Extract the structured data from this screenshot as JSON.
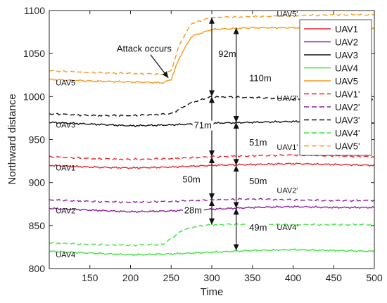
{
  "chart_data": {
    "type": "line",
    "xlabel": "Time",
    "ylabel": "Northward distance",
    "xlim": [
      100,
      500
    ],
    "ylim": [
      800,
      1100
    ],
    "xticks": [
      150,
      200,
      250,
      300,
      350,
      400,
      450,
      500
    ],
    "yticks": [
      800,
      850,
      900,
      950,
      1000,
      1050,
      1100
    ],
    "grid": false,
    "legend_position": "top-right",
    "series": [
      {
        "name": "UAV1",
        "color": "#e8242a",
        "style": "solid",
        "x": [
          100,
          150,
          200,
          250,
          300,
          350,
          400,
          450,
          500
        ],
        "y": [
          920,
          918,
          917,
          918,
          920,
          921,
          922,
          921,
          920
        ]
      },
      {
        "name": "UAV2",
        "color": "#8e1d9a",
        "style": "solid",
        "x": [
          100,
          150,
          200,
          250,
          300,
          350,
          400,
          450,
          500
        ],
        "y": [
          870,
          868,
          866,
          867,
          869,
          871,
          872,
          871,
          871
        ]
      },
      {
        "name": "UAV3",
        "color": "#111111",
        "style": "solid",
        "x": [
          100,
          150,
          200,
          250,
          300,
          350,
          400,
          450,
          500
        ],
        "y": [
          970,
          968,
          966,
          967,
          969,
          970,
          971,
          970,
          969
        ]
      },
      {
        "name": "UAV4",
        "color": "#3fe33f",
        "style": "solid",
        "x": [
          100,
          150,
          200,
          250,
          300,
          350,
          400,
          450,
          500
        ],
        "y": [
          820,
          818,
          816,
          817,
          819,
          821,
          822,
          821,
          820
        ]
      },
      {
        "name": "UAV5",
        "color": "#f59a1f",
        "style": "solid",
        "x": [
          100,
          150,
          200,
          240,
          250,
          260,
          275,
          300,
          350,
          400,
          450,
          500
        ],
        "y": [
          1020,
          1018,
          1017,
          1016,
          1020,
          1045,
          1070,
          1078,
          1080,
          1080,
          1080,
          1080
        ]
      },
      {
        "name": "UAV1'",
        "color": "#e8242a",
        "style": "dashed",
        "x": [
          100,
          150,
          200,
          250,
          300,
          350,
          400,
          450,
          500
        ],
        "y": [
          930,
          928,
          927,
          928,
          930,
          931,
          932,
          931,
          930
        ]
      },
      {
        "name": "UAV2'",
        "color": "#8e1d9a",
        "style": "dashed",
        "x": [
          100,
          150,
          200,
          250,
          300,
          350,
          400,
          450,
          500
        ],
        "y": [
          880,
          878,
          877,
          878,
          880,
          881,
          880,
          879,
          879
        ]
      },
      {
        "name": "UAV3'",
        "color": "#111111",
        "style": "dashed",
        "x": [
          100,
          150,
          200,
          250,
          275,
          300,
          350,
          400,
          450,
          500
        ],
        "y": [
          980,
          978,
          978,
          980,
          993,
          1000,
          999,
          997,
          996,
          996
        ]
      },
      {
        "name": "UAV4'",
        "color": "#3fe33f",
        "style": "dashed",
        "x": [
          100,
          150,
          200,
          240,
          250,
          265,
          280,
          300,
          350,
          400,
          450,
          500
        ],
        "y": [
          830,
          828,
          827,
          828,
          835,
          845,
          849,
          851,
          852,
          851,
          851,
          851
        ]
      },
      {
        "name": "UAV5'",
        "color": "#f59a1f",
        "style": "dashed",
        "x": [
          100,
          150,
          200,
          240,
          250,
          260,
          275,
          300,
          350,
          400,
          450,
          500
        ],
        "y": [
          1030,
          1028,
          1027,
          1026,
          1030,
          1060,
          1085,
          1092,
          1093,
          1094,
          1095,
          1095
        ]
      }
    ],
    "line_labels": [
      {
        "text": "UAV5",
        "x": 108,
        "y": 1013
      },
      {
        "text": "UAV3",
        "x": 108,
        "y": 964
      },
      {
        "text": "UAV1",
        "x": 108,
        "y": 914
      },
      {
        "text": "UAV2",
        "x": 108,
        "y": 864
      },
      {
        "text": "UAV4",
        "x": 108,
        "y": 813
      },
      {
        "text": "UAV5'",
        "x": 380,
        "y": 1093
      },
      {
        "text": "UAV3'",
        "x": 380,
        "y": 995
      },
      {
        "text": "UAV1'",
        "x": 380,
        "y": 938
      },
      {
        "text": "UAV2'",
        "x": 380,
        "y": 888
      },
      {
        "text": "UAV4'",
        "x": 380,
        "y": 845
      }
    ],
    "attack_annotation": {
      "text": "Attack occurs",
      "x_text": 183,
      "y_text": 1052,
      "x_point": 250,
      "y_point": 1020
    },
    "distance_annotations": [
      {
        "label": "92m",
        "x": 300,
        "y_from": 1000,
        "y_to": 1092,
        "label_x": 308,
        "label_y": 1046
      },
      {
        "label": "110m",
        "x": 330,
        "y_from": 970,
        "y_to": 1080,
        "label_x": 346,
        "label_y": 1018
      },
      {
        "label": "71m",
        "x": 300,
        "y_from": 930,
        "y_to": 1000,
        "label_x": 278,
        "label_y": 963
      },
      {
        "label": "51m",
        "x": 330,
        "y_from": 920,
        "y_to": 970,
        "label_x": 346,
        "label_y": 943
      },
      {
        "label": "50m",
        "x": 300,
        "y_from": 880,
        "y_to": 930,
        "label_x": 264,
        "label_y": 900
      },
      {
        "label": "50m",
        "x": 330,
        "y_from": 870,
        "y_to": 920,
        "label_x": 346,
        "label_y": 898
      },
      {
        "label": "28m",
        "x": 300,
        "y_from": 851,
        "y_to": 880,
        "label_x": 266,
        "label_y": 864
      },
      {
        "label": "49m",
        "x": 330,
        "y_from": 821,
        "y_to": 870,
        "label_x": 346,
        "label_y": 844
      }
    ]
  }
}
